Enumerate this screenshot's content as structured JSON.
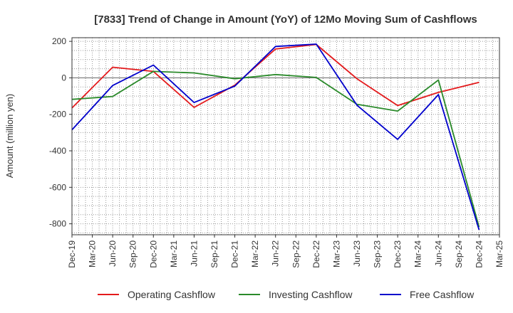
{
  "chart_data": {
    "type": "line",
    "title": "[7833]  Trend of Change in Amount (YoY) of 12Mo Moving Sum of Cashflows",
    "xlabel": "",
    "ylabel": "Amount (million yen)",
    "ylim": [
      -860,
      220
    ],
    "yticks": [
      200,
      0,
      -200,
      -400,
      -600,
      -800
    ],
    "ytick_labels": [
      "200",
      "0",
      "-200",
      "-400",
      "-600",
      "-800"
    ],
    "categories": [
      "Dec-19",
      "Mar-20",
      "Jun-20",
      "Sep-20",
      "Dec-20",
      "Mar-21",
      "Jun-21",
      "Sep-21",
      "Dec-21",
      "Mar-22",
      "Jun-22",
      "Sep-22",
      "Dec-22",
      "Mar-23",
      "Jun-23",
      "Sep-23",
      "Dec-23",
      "Mar-24",
      "Jun-24",
      "Sep-24",
      "Dec-24",
      "Mar-25"
    ],
    "grid": true,
    "legend_position": "bottom",
    "series": [
      {
        "name": "Operating Cashflow",
        "color": "#e41a1c",
        "values": [
          -165,
          null,
          58,
          null,
          35,
          null,
          -162,
          null,
          -40,
          null,
          158,
          null,
          183,
          null,
          -5,
          null,
          -152,
          null,
          -80,
          null,
          -25,
          null
        ]
      },
      {
        "name": "Investing Cashflow",
        "color": "#2a8a2a",
        "values": [
          -118,
          null,
          -102,
          null,
          35,
          null,
          27,
          null,
          -5,
          null,
          18,
          null,
          2,
          null,
          -145,
          null,
          -182,
          null,
          -12,
          null,
          -818,
          null
        ]
      },
      {
        "name": "Free Cashflow",
        "color": "#0000cc",
        "values": [
          -285,
          null,
          -42,
          null,
          70,
          null,
          -135,
          null,
          -45,
          null,
          172,
          null,
          185,
          null,
          -150,
          null,
          -337,
          null,
          -92,
          null,
          -833,
          null
        ]
      }
    ]
  }
}
